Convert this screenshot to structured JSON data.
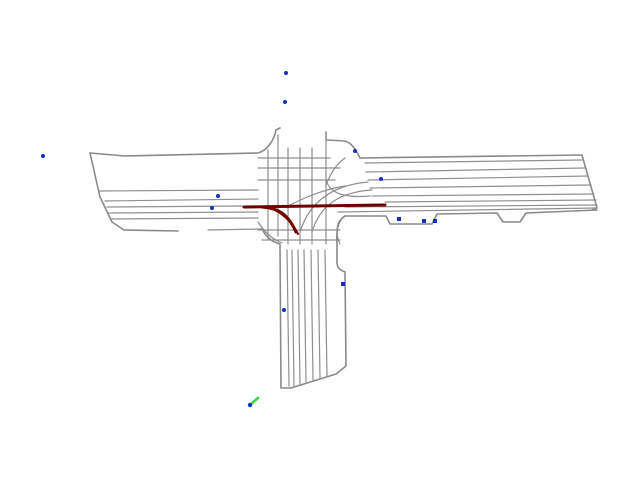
{
  "map": {
    "colors": {
      "background": "#ffffff",
      "lane": "#8a8a8a",
      "planned_route": "#6b0000",
      "agent": "#1030c0",
      "ego_trail": "#33dd33"
    },
    "legend": [],
    "title": ""
  }
}
